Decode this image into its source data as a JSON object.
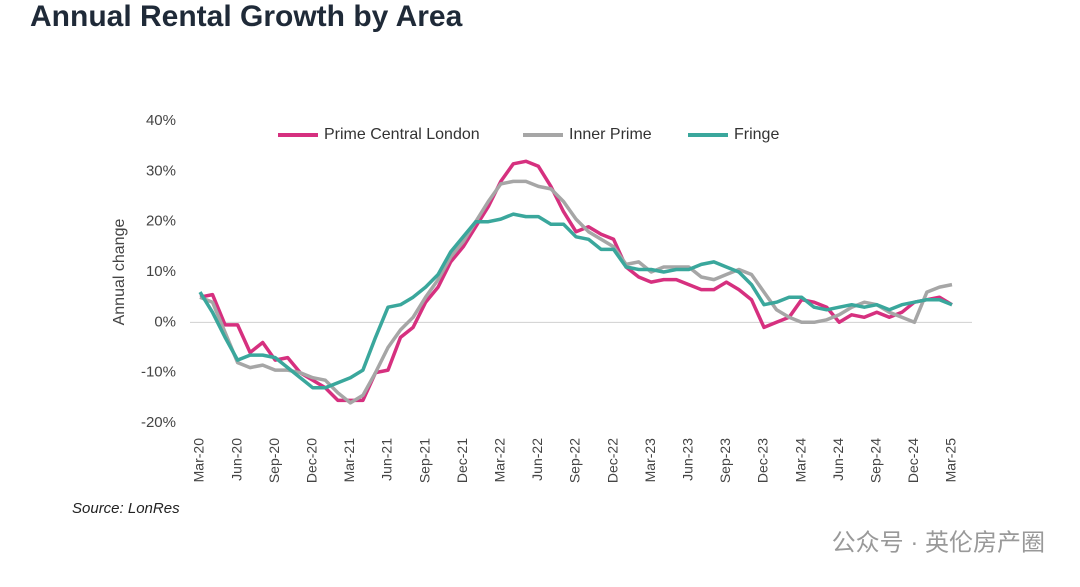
{
  "chart_data": {
    "type": "line",
    "title": "Annual Rental Growth by Area",
    "y_label": "Annual change",
    "source": "Source: LonRes",
    "watermark": "公众号 · 英伦房产圈",
    "categories": [
      "Mar-20",
      null,
      null,
      "Jun-20",
      null,
      null,
      "Sep-20",
      null,
      null,
      "Dec-20",
      null,
      null,
      "Mar-21",
      null,
      null,
      "Jun-21",
      null,
      null,
      "Sep-21",
      null,
      null,
      "Dec-21",
      null,
      null,
      "Mar-22",
      null,
      null,
      "Jun-22",
      null,
      null,
      "Sep-22",
      null,
      null,
      "Dec-22",
      null,
      null,
      "Mar-23",
      null,
      null,
      "Jun-23",
      null,
      null,
      "Sep-23",
      null,
      null,
      "Dec-23",
      null,
      null,
      "Mar-24",
      null,
      null,
      "Jun-24",
      null,
      null,
      "Sep-24",
      null,
      null,
      "Dec-24",
      null,
      null,
      "Mar-25"
    ],
    "series": [
      {
        "name": "Prime Central London",
        "color": "#d6307f",
        "values": [
          5,
          5.5,
          -0.5,
          -0.5,
          -6,
          -4,
          -7.5,
          -7,
          -10,
          -11.5,
          -13,
          -15.5,
          -15.5,
          -15.5,
          -10,
          -9.5,
          -3,
          -1,
          4,
          7,
          12,
          15,
          19,
          23,
          28,
          31.5,
          32,
          31,
          27,
          22,
          18,
          19,
          17.5,
          16.5,
          11,
          9,
          8,
          8.5,
          8.5,
          7.5,
          6.5,
          6.5,
          8,
          6.5,
          4.5,
          -1,
          0,
          1,
          4.5,
          4,
          3,
          0,
          1.5,
          1,
          2,
          1,
          2,
          4,
          4.5,
          5,
          3.5
        ]
      },
      {
        "name": "Inner Prime",
        "color": "#a6a6a6",
        "values": [
          5,
          4,
          -2,
          -8,
          -9,
          -8.5,
          -9.5,
          -9.5,
          -10,
          -11,
          -11.5,
          -14,
          -16,
          -14.5,
          -10,
          -5,
          -1.5,
          1,
          5,
          8.5,
          13,
          16,
          20,
          24,
          27.5,
          28,
          28,
          27,
          26.5,
          24,
          20.5,
          18,
          16.5,
          15,
          11.5,
          12,
          10,
          11,
          11,
          11,
          9,
          8.5,
          9.5,
          10.5,
          9.5,
          6,
          2.5,
          1,
          0,
          0,
          0.5,
          1.5,
          3,
          4,
          3.5,
          2,
          1,
          0,
          6,
          7,
          7.5
        ]
      },
      {
        "name": "Fringe",
        "color": "#3aa79c",
        "values": [
          6,
          2,
          -3,
          -7.5,
          -6.5,
          -6.5,
          -7,
          -9,
          -11,
          -13,
          -13,
          -12,
          -11,
          -9.5,
          -3,
          3,
          3.5,
          5,
          7,
          9.5,
          14,
          17,
          20,
          20,
          20.5,
          21.5,
          21,
          21,
          19.5,
          19.5,
          17,
          16.5,
          14.5,
          14.5,
          11,
          10.5,
          10.5,
          10,
          10.5,
          10.5,
          11.5,
          12,
          11,
          10,
          7.5,
          3.5,
          4,
          5,
          5,
          3,
          2.5,
          3,
          3.5,
          3,
          3.5,
          2.5,
          3.5,
          4,
          4.5,
          4.5,
          3.5
        ]
      }
    ],
    "ylim": [
      -20,
      40
    ],
    "yticks": [
      {
        "value": -20,
        "label": "-20%"
      },
      {
        "value": -10,
        "label": "-10%"
      },
      {
        "value": 0,
        "label": "0%"
      },
      {
        "value": 10,
        "label": "10%"
      },
      {
        "value": 20,
        "label": "20%"
      },
      {
        "value": 30,
        "label": "30%"
      },
      {
        "value": 40,
        "label": "40%"
      }
    ],
    "legend": "top"
  }
}
